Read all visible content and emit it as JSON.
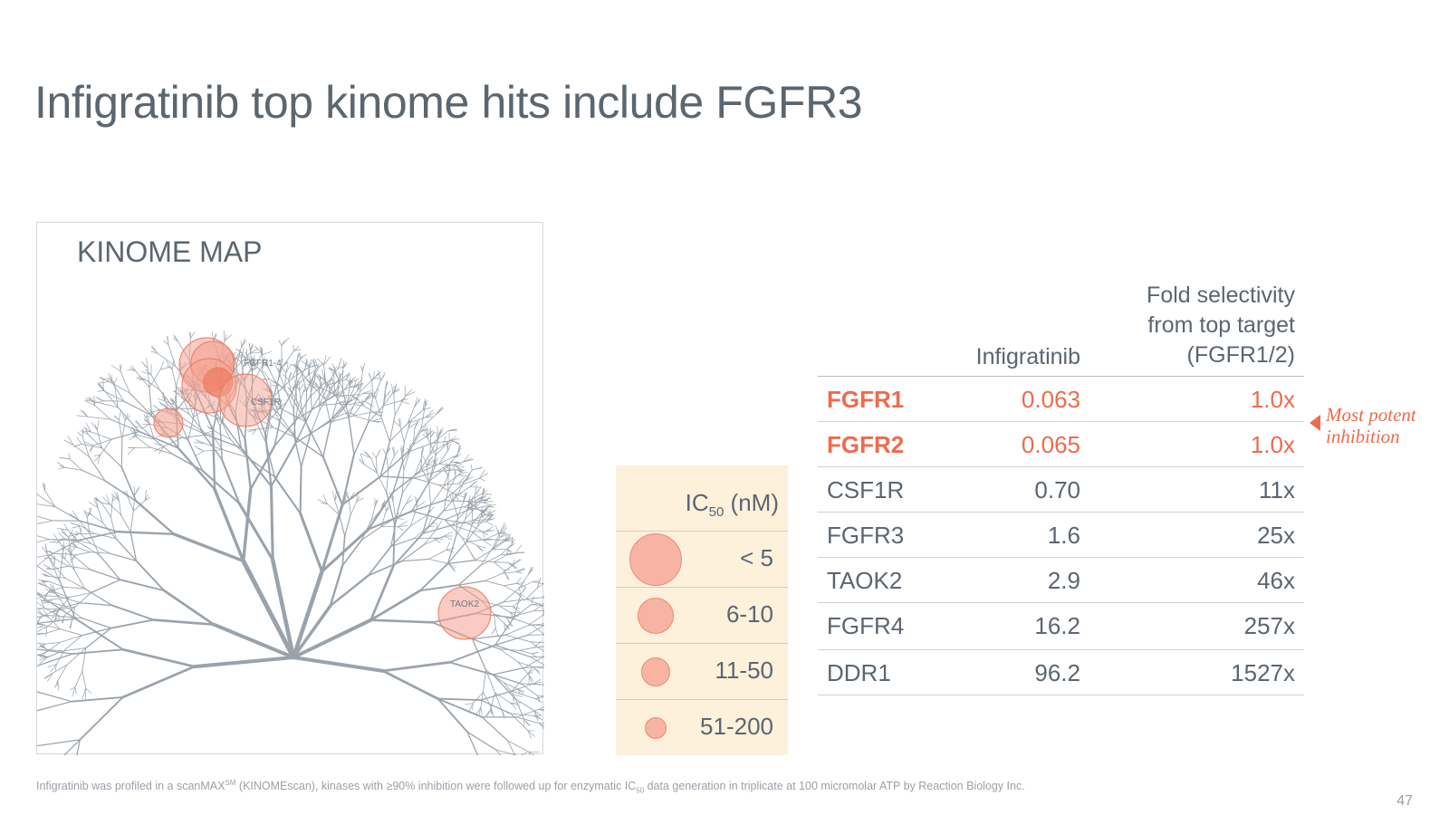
{
  "slide": {
    "title": "Infigratinib top kinome hits include FGFR3",
    "page_number": "47"
  },
  "kinome_map": {
    "title": "KINOME MAP",
    "labels": {
      "fgfr": "FGFR1-4",
      "csf1r": "CSF1R",
      "taok2": "TAOK2"
    },
    "colors": {
      "tree": "#9aa3ab",
      "bubble_fill": "#f4a190",
      "bubble_stroke": "#ec7a63"
    }
  },
  "legend": {
    "header_main": "IC",
    "header_sub": "50",
    "header_unit": " (nM)",
    "rows": [
      {
        "label": "< 5"
      },
      {
        "label": "6-10"
      },
      {
        "label": "11-50"
      },
      {
        "label": "51-200"
      }
    ]
  },
  "table": {
    "col2_header": "Infigratinib",
    "col3_header_lines": [
      "Fold selectivity",
      "from top target",
      "(FGFR1/2)"
    ],
    "rows": [
      {
        "kinase": "FGFR1",
        "ic50": "0.063",
        "fold": "1.0x"
      },
      {
        "kinase": "FGFR2",
        "ic50": "0.065",
        "fold": "1.0x"
      },
      {
        "kinase": "CSF1R",
        "ic50": "0.70",
        "fold": "11x"
      },
      {
        "kinase": "FGFR3",
        "ic50": "1.6",
        "fold": "25x"
      },
      {
        "kinase": "TAOK2",
        "ic50": "2.9",
        "fold": "46x"
      },
      {
        "kinase": "FGFR4",
        "ic50": "16.2",
        "fold": "257x"
      },
      {
        "kinase": "DDR1",
        "ic50": "96.2",
        "fold": "1527x"
      }
    ],
    "highlight_color": "#ee6b4d"
  },
  "callout": {
    "line1": "Most potent",
    "line2": "inhibition"
  },
  "footnote": {
    "part1": "Infigratinib was profiled in a scanMAX",
    "sup": "SM",
    "part2": " (KINOMEscan), kinases with ≥90% inhibition were followed up for enzymatic IC",
    "sub": "50",
    "part3": " data generation in triplicate at 100 micromolar ATP by Reaction Biology Inc."
  }
}
